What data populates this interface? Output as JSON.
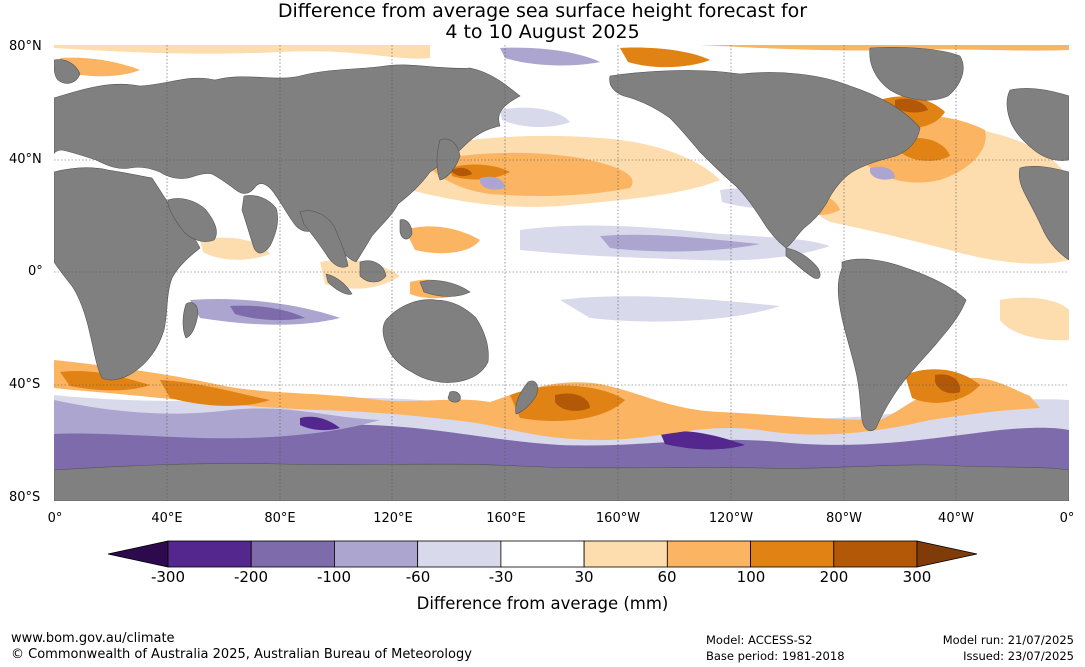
{
  "title": {
    "line1": "Difference from average sea surface height forecast for",
    "line2": "4 to 10 August 2025"
  },
  "map": {
    "lat_labels": [
      "80°N",
      "40°N",
      "0°",
      "40°S",
      "80°S"
    ],
    "lon_labels": [
      "0°",
      "40°E",
      "80°E",
      "120°E",
      "160°E",
      "160°W",
      "120°W",
      "80°W",
      "40°W",
      "0°"
    ],
    "land_color": "#808080",
    "ocean_neutral_color": "#ffffff"
  },
  "colorbar": {
    "label": "Difference from average (mm)",
    "ticks": [
      "-300",
      "-200",
      "-100",
      "-60",
      "-30",
      "30",
      "60",
      "100",
      "200",
      "300"
    ],
    "colors": {
      "low_extend": "#2d0a4e",
      "bins": [
        "#54278f",
        "#7d6bab",
        "#aca5cf",
        "#d9d9ec",
        "#ffffff",
        "#fddcae",
        "#fbb461",
        "#e08214",
        "#b35806"
      ],
      "high_extend": "#7f3b08"
    }
  },
  "footer": {
    "website": "www.bom.gov.au/climate",
    "copyright": "© Commonwealth of Australia 2025, Australian Bureau of Meteorology",
    "model": "Model: ACCESS-S2",
    "base_period": "Base period: 1981-2018",
    "model_run": "Model run: 21/07/2025",
    "issued": "Issued: 23/07/2025"
  }
}
